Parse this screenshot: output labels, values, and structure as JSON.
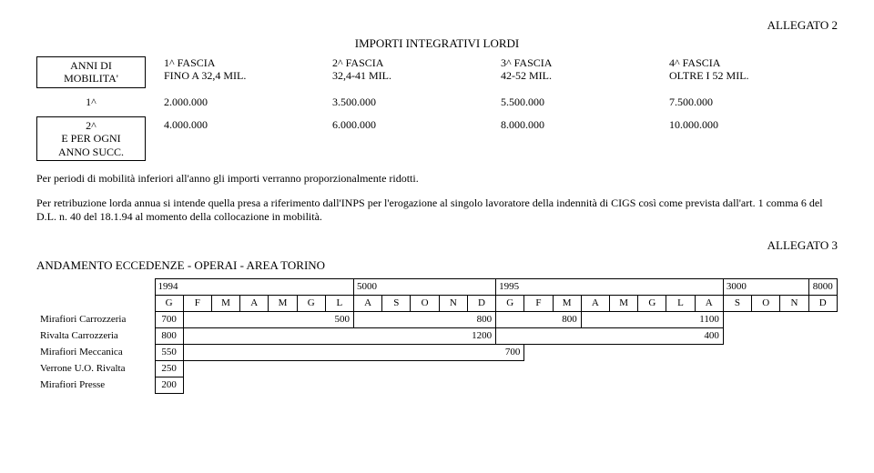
{
  "allegato2": "ALLEGATO 2",
  "title1": "IMPORTI INTEGRATIVI LORDI",
  "header_left_l1": "ANNI DI",
  "header_left_l2": "MOBILITA'",
  "fascia_headers": [
    {
      "l1": "1^ FASCIA",
      "l2": "FINO A 32,4 MIL."
    },
    {
      "l1": "2^ FASCIA",
      "l2": "32,4-41 MIL."
    },
    {
      "l1": "3^ FASCIA",
      "l2": "42-52 MIL."
    },
    {
      "l1": "4^ FASCIA",
      "l2": "OLTRE I 52 MIL."
    }
  ],
  "row1_label": "1^",
  "row1": [
    "2.000.000",
    "3.500.000",
    "5.500.000",
    "7.500.000"
  ],
  "row2_label_l1": "2^",
  "row2_label_l2": "E PER OGNI",
  "row2_label_l3": "ANNO SUCC.",
  "row2": [
    "4.000.000",
    "6.000.000",
    "8.000.000",
    "10.000.000"
  ],
  "para1": "Per periodi di mobilità inferiori all'anno gli importi verranno proporzionalmente ridotti.",
  "para2": "Per retribuzione lorda annua si intende quella presa a riferimento dall'INPS per l'erogazione al singolo lavoratore della indennità di CIGS così come prevista dall'art. 1 comma 6 del D.L. n. 40 del 18.1.94 al momento della collocazione in mobilità.",
  "allegato3": "ALLEGATO 3",
  "title2": "ANDAMENTO ECCEDENZE - OPERAI - AREA TORINO",
  "year1": "1994",
  "year1_val": "5000",
  "year2": "1995",
  "year2_val": "3000",
  "total": "8000",
  "months": [
    "G",
    "F",
    "M",
    "A",
    "M",
    "G",
    "L",
    "A",
    "S",
    "O",
    "N",
    "D",
    "G",
    "F",
    "M",
    "A",
    "M",
    "G",
    "L",
    "A",
    "S",
    "O",
    "N",
    "D"
  ],
  "gantt_rows": [
    {
      "label": "Mirafiori Carrozzeria",
      "start_val": "700",
      "bars": [
        {
          "from": 1,
          "to": 6,
          "val": "500"
        },
        {
          "from": 7,
          "to": 11,
          "val": "800"
        },
        {
          "from": 12,
          "to": 14,
          "val": "800"
        },
        {
          "from": 15,
          "to": 19,
          "val": "1100"
        }
      ]
    },
    {
      "label": "Rivalta Carrozzeria",
      "start_val": "800",
      "bars": [
        {
          "from": 1,
          "to": 11,
          "val": "1200"
        },
        {
          "from": 12,
          "to": 19,
          "val": "400"
        }
      ]
    },
    {
      "label": "Mirafiori Meccanica",
      "start_val": "550",
      "bars": [
        {
          "from": 1,
          "to": 12,
          "val": "700"
        }
      ]
    },
    {
      "label": "Verrone U.O. Rivalta",
      "start_val": "250",
      "bars": []
    },
    {
      "label": "Mirafiori Presse",
      "start_val": "200",
      "bars": []
    }
  ]
}
